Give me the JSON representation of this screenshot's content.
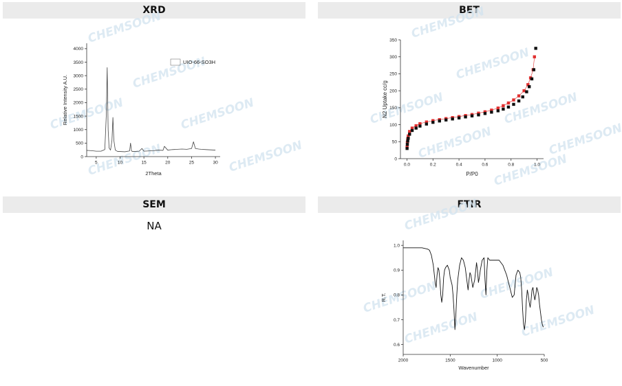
{
  "panels": {
    "xrd": "XRD",
    "bet": "BET",
    "sem": "SEM",
    "ftir": "FTIR"
  },
  "sem": {
    "content": "NA"
  },
  "watermark": "CHEMSOON",
  "colors": {
    "header_bg": "#ebebeb",
    "bet_red": "#e03030",
    "bet_black": "#111111",
    "watermark": "#d2e3ef"
  },
  "chart_data": [
    {
      "id": "xrd",
      "type": "line",
      "xlabel": "2Theta",
      "ylabel": "Relative Intensity A.U.",
      "xlim": [
        3,
        31
      ],
      "ylim": [
        0,
        4200
      ],
      "xticks": [
        5,
        10,
        15,
        20,
        25,
        30
      ],
      "yticks": [
        0,
        500,
        1000,
        1500,
        2000,
        2500,
        3000,
        3500,
        4000
      ],
      "legend": {
        "label": "UIO-66-SO3H",
        "position": "top-right"
      },
      "series": [
        {
          "name": "UIO-66-SO3H",
          "x": [
            3,
            4,
            5,
            6,
            6.8,
            7.1,
            7.3,
            7.5,
            7.7,
            8.0,
            8.3,
            8.5,
            8.7,
            9.0,
            9.5,
            10,
            11,
            12,
            12.2,
            12.4,
            12.6,
            13,
            14,
            14.6,
            15,
            16,
            17,
            18,
            19,
            19.3,
            20,
            21,
            22,
            23,
            24,
            25,
            25.4,
            25.8,
            26.5,
            27,
            28,
            29,
            30
          ],
          "y": [
            230,
            220,
            200,
            200,
            260,
            1500,
            3300,
            1000,
            320,
            240,
            600,
            1450,
            600,
            240,
            190,
            190,
            180,
            210,
            500,
            210,
            190,
            190,
            200,
            300,
            200,
            210,
            220,
            240,
            230,
            380,
            240,
            260,
            270,
            280,
            270,
            300,
            550,
            300,
            280,
            270,
            260,
            250,
            240
          ]
        }
      ]
    },
    {
      "id": "bet",
      "type": "scatter",
      "xlabel": "P/P0",
      "ylabel": "N2 Uptake cc/g",
      "xlim": [
        -0.05,
        1.05
      ],
      "ylim": [
        0,
        350
      ],
      "xticks": [
        0.0,
        0.2,
        0.4,
        0.6,
        0.8,
        1.0
      ],
      "yticks": [
        0,
        50,
        100,
        150,
        200,
        250,
        300,
        350
      ],
      "series": [
        {
          "style": "red",
          "x": [
            0.001,
            0.003,
            0.006,
            0.01,
            0.02,
            0.04,
            0.07,
            0.1,
            0.15,
            0.2,
            0.25,
            0.3,
            0.35,
            0.4,
            0.45,
            0.5,
            0.55,
            0.6,
            0.65,
            0.7,
            0.74,
            0.78,
            0.82,
            0.86,
            0.9,
            0.93,
            0.95,
            0.97,
            0.98
          ],
          "y": [
            35,
            48,
            58,
            67,
            80,
            90,
            97,
            103,
            108,
            112,
            115,
            118,
            121,
            124,
            127,
            130,
            134,
            138,
            143,
            149,
            156,
            164,
            173,
            185,
            200,
            218,
            238,
            262,
            300
          ]
        },
        {
          "style": "black",
          "x": [
            0.001,
            0.003,
            0.006,
            0.01,
            0.02,
            0.04,
            0.07,
            0.1,
            0.15,
            0.2,
            0.25,
            0.3,
            0.35,
            0.4,
            0.45,
            0.5,
            0.55,
            0.6,
            0.65,
            0.7,
            0.74,
            0.78,
            0.82,
            0.86,
            0.89,
            0.92,
            0.94,
            0.96,
            0.975,
            0.99
          ],
          "y": [
            30,
            42,
            52,
            60,
            72,
            83,
            90,
            96,
            102,
            107,
            111,
            114,
            117,
            120,
            123,
            126,
            129,
            133,
            137,
            141,
            146,
            152,
            160,
            170,
            182,
            197,
            212,
            235,
            262,
            325
          ]
        }
      ]
    },
    {
      "id": "ftir",
      "type": "line",
      "xlabel": "Wavenumber",
      "ylabel": "R.T.",
      "xlim": [
        2000,
        500
      ],
      "ylim": [
        0.56,
        1.02
      ],
      "xticks": [
        2000,
        1500,
        1000,
        500
      ],
      "yticks": [
        0.6,
        0.7,
        0.8,
        0.9,
        1.0
      ],
      "series": [
        {
          "name": "",
          "x": [
            2000,
            1900,
            1800,
            1740,
            1720,
            1700,
            1680,
            1660,
            1650,
            1640,
            1630,
            1620,
            1610,
            1600,
            1590,
            1580,
            1570,
            1560,
            1550,
            1530,
            1510,
            1500,
            1480,
            1470,
            1460,
            1450,
            1440,
            1430,
            1420,
            1400,
            1380,
            1360,
            1340,
            1320,
            1310,
            1300,
            1290,
            1280,
            1260,
            1240,
            1220,
            1210,
            1200,
            1190,
            1180,
            1160,
            1140,
            1130,
            1120,
            1110,
            1100,
            1080,
            1060,
            1040,
            1020,
            1000,
            980,
            960,
            940,
            920,
            900,
            880,
            860,
            840,
            820,
            800,
            780,
            760,
            750,
            740,
            730,
            720,
            710,
            700,
            690,
            680,
            670,
            660,
            650,
            640,
            630,
            620,
            610,
            600,
            590,
            580,
            570,
            560,
            550,
            540,
            530,
            520,
            510
          ],
          "y": [
            0.99,
            0.99,
            0.99,
            0.985,
            0.98,
            0.96,
            0.92,
            0.85,
            0.83,
            0.88,
            0.91,
            0.9,
            0.86,
            0.8,
            0.77,
            0.8,
            0.87,
            0.9,
            0.91,
            0.92,
            0.9,
            0.87,
            0.84,
            0.8,
            0.74,
            0.66,
            0.72,
            0.8,
            0.86,
            0.92,
            0.95,
            0.94,
            0.91,
            0.85,
            0.82,
            0.86,
            0.89,
            0.88,
            0.83,
            0.86,
            0.93,
            0.9,
            0.85,
            0.87,
            0.9,
            0.94,
            0.95,
            0.86,
            0.8,
            0.9,
            0.95,
            0.94,
            0.94,
            0.94,
            0.94,
            0.94,
            0.94,
            0.93,
            0.92,
            0.9,
            0.88,
            0.85,
            0.82,
            0.79,
            0.8,
            0.88,
            0.9,
            0.89,
            0.87,
            0.82,
            0.74,
            0.68,
            0.66,
            0.7,
            0.78,
            0.82,
            0.8,
            0.77,
            0.75,
            0.78,
            0.82,
            0.83,
            0.8,
            0.78,
            0.8,
            0.83,
            0.82,
            0.8,
            0.76,
            0.73,
            0.7,
            0.68,
            0.67
          ]
        }
      ]
    }
  ]
}
